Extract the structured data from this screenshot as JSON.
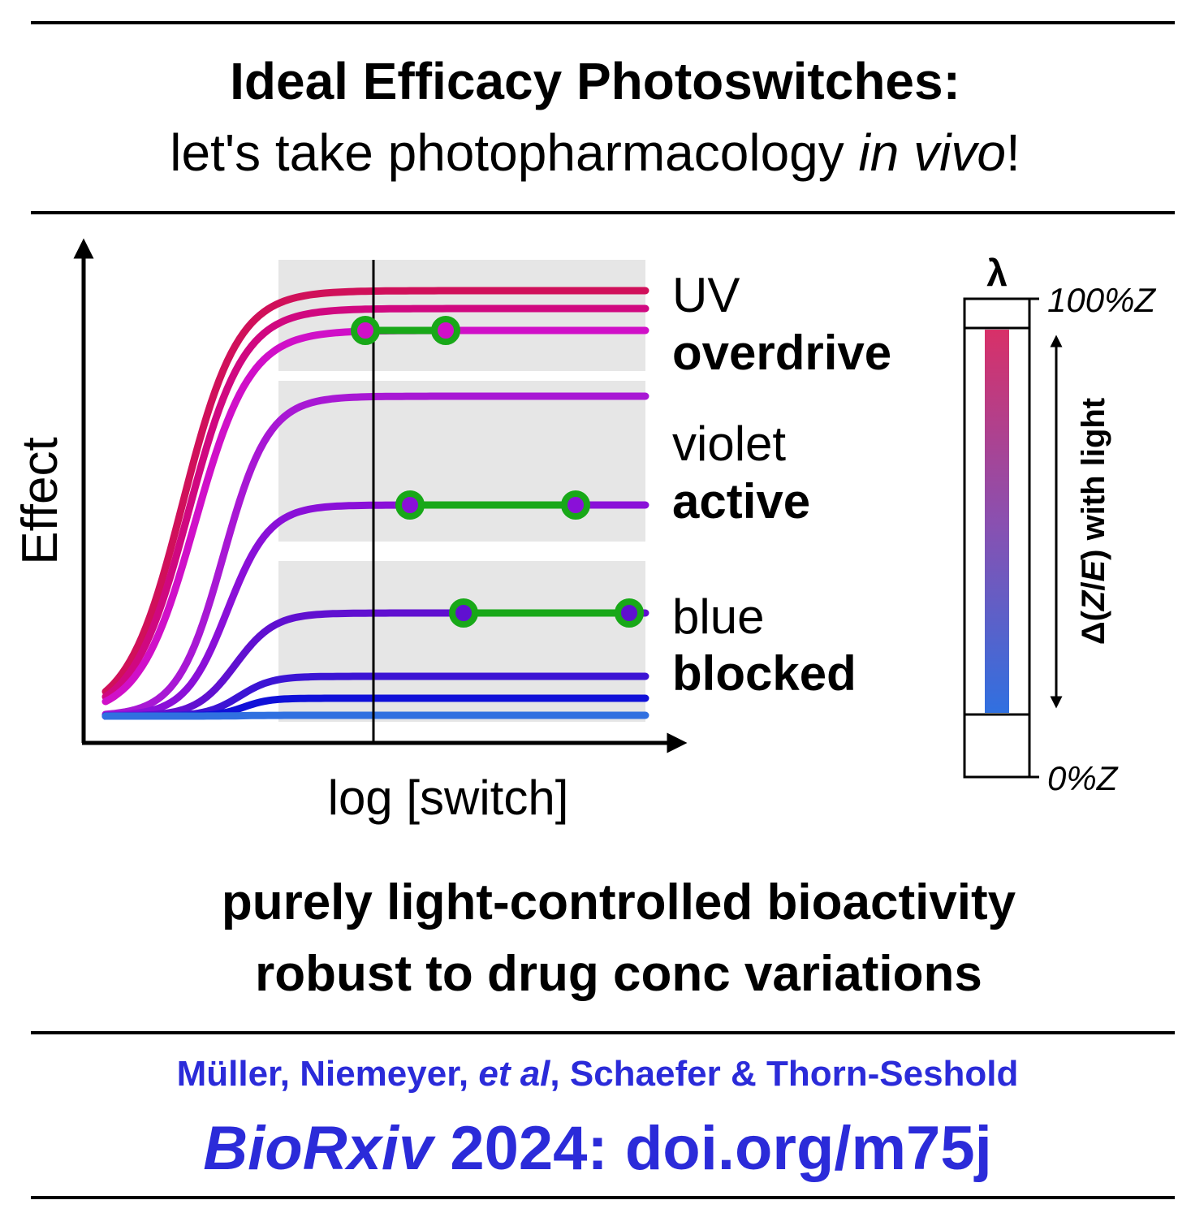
{
  "header": {
    "title": "Ideal Efficacy Photoswitches:",
    "subtitle": [
      "let's take photopharmacology ",
      "in vivo",
      "!"
    ]
  },
  "plot": {
    "y_label": "Effect",
    "x_label": "log [switch]",
    "groups": [
      {
        "line1": "UV",
        "line2": "overdrive"
      },
      {
        "line1": "violet",
        "line2": "active"
      },
      {
        "line1": "blue",
        "line2": "blocked"
      }
    ]
  },
  "scale": {
    "symbol": "λ",
    "top": "100%Z",
    "bottom": "0%Z",
    "arrow_label": [
      "Δ(",
      "Z",
      "/",
      "E",
      ") with light"
    ]
  },
  "conclusion": [
    "purely light-controlled bioactivity",
    "robust to drug conc variations"
  ],
  "footer": {
    "authors": [
      "Müller, Niemeyer, ",
      "et al",
      ", Schaefer & Thorn-Seshold"
    ],
    "citation": [
      "BioRxiv",
      " 2024: doi.org/m75j"
    ]
  }
}
